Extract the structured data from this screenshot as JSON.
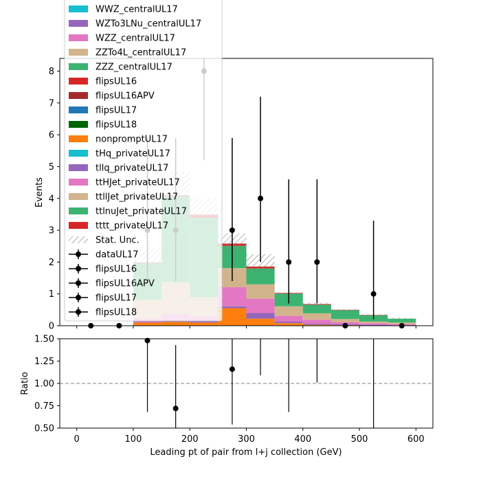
{
  "chart_data": {
    "type": "bar",
    "subtype": "stacked-histogram-with-ratio",
    "bin_edges": [
      0,
      50,
      100,
      150,
      200,
      250,
      300,
      350,
      400,
      450,
      500,
      550,
      600
    ],
    "main_panel": {
      "ylabel": "Events",
      "ylim": [
        0,
        8.4
      ],
      "yticks": [
        "0",
        "1",
        "2",
        "3",
        "4",
        "5",
        "6",
        "7",
        "8"
      ],
      "xlim": [
        -30,
        630
      ],
      "stacked_series": [
        {
          "name": "nonpromptUL17",
          "color": "#ff7f0e",
          "values": [
            0,
            0,
            0.1,
            0.12,
            0.1,
            0.55,
            0.22,
            0.08,
            0.03,
            0.02,
            0.01,
            0.0
          ]
        },
        {
          "name": "tllq_privateUL17",
          "color": "#9467bd",
          "values": [
            0,
            0,
            0.02,
            0.05,
            0.04,
            0.06,
            0.18,
            0.05,
            0.04,
            0.03,
            0.02,
            0.02
          ]
        },
        {
          "name": "ttHJet_privateUL17",
          "color": "#e377c2",
          "values": [
            0,
            0,
            0.1,
            0.2,
            0.15,
            0.6,
            0.45,
            0.18,
            0.12,
            0.06,
            0.05,
            0.03
          ]
        },
        {
          "name": "ttllJet_privateUL17",
          "color": "#d2b48c",
          "values": [
            0,
            0,
            0.6,
            1.0,
            0.6,
            0.6,
            0.45,
            0.3,
            0.2,
            0.1,
            0.05,
            0.05
          ]
        },
        {
          "name": "ttlnuJet_privateUL17",
          "color": "#3cb371",
          "values": [
            0,
            0,
            1.15,
            2.7,
            2.5,
            0.7,
            0.5,
            0.4,
            0.27,
            0.28,
            0.2,
            0.12
          ]
        },
        {
          "name": "tttt_privateUL17",
          "color": "#d62728",
          "values": [
            0,
            0,
            0.02,
            0.03,
            0.1,
            0.07,
            0.06,
            0.02,
            0.02,
            0.01,
            0.01,
            0.0
          ]
        }
      ],
      "stat_unc_top": [
        0,
        0,
        2.45,
        4.85,
        4.0,
        2.9,
        2.25,
        1.05,
        0.72,
        0.52,
        0.36,
        0.25
      ],
      "stat_unc_bottom": [
        0,
        0,
        1.55,
        3.4,
        3.0,
        2.35,
        1.7,
        0.98,
        0.63,
        0.46,
        0.3,
        0.2
      ],
      "data": {
        "name": "dataUL17",
        "x": [
          25,
          75,
          125,
          175,
          225,
          275,
          325,
          375,
          425,
          475,
          525,
          575
        ],
        "y": [
          0,
          0,
          3,
          3,
          8,
          3,
          4,
          2,
          2,
          0,
          1,
          0
        ],
        "err_up": [
          0,
          0,
          2.9,
          2.9,
          3.9,
          2.9,
          3.2,
          2.6,
          2.6,
          0,
          2.3,
          0
        ],
        "err_down": [
          0,
          0,
          1.6,
          1.6,
          2.8,
          1.6,
          2.0,
          1.3,
          1.3,
          0,
          0.8,
          0
        ]
      }
    },
    "ratio_panel": {
      "ylabel": "Ratio",
      "ylim": [
        0.5,
        1.5
      ],
      "yticks": [
        "0.50",
        "0.75",
        "1.00",
        "1.25",
        "1.50"
      ],
      "reference_line": 1.0,
      "points": [
        {
          "x": 125,
          "y": 1.48,
          "lo": 0.68,
          "hi": 1.5
        },
        {
          "x": 175,
          "y": 0.72,
          "lo": 0.5,
          "hi": 1.43
        },
        {
          "x": 275,
          "y": 1.16,
          "lo": 0.54,
          "hi": 1.5
        },
        {
          "x": 325,
          "y": null,
          "lo": 1.09,
          "hi": 1.5
        },
        {
          "x": 375,
          "y": null,
          "lo": 0.68,
          "hi": 1.5
        },
        {
          "x": 425,
          "y": null,
          "lo": 1.01,
          "hi": 1.5
        },
        {
          "x": 525,
          "y": null,
          "lo": 0.5,
          "hi": 1.5
        }
      ]
    },
    "xlabel": "Leading pt of pair from l+j collection (GeV)",
    "xticks": [
      "0",
      "100",
      "200",
      "300",
      "400",
      "500",
      "600"
    ],
    "legend": {
      "placement": "upper-left",
      "entries": [
        {
          "label": "WWZ_centralUL17",
          "kind": "patch",
          "color": "#17becf"
        },
        {
          "label": "WZTo3LNu_centralUL17",
          "kind": "patch",
          "color": "#9467bd"
        },
        {
          "label": "WZZ_centralUL17",
          "kind": "patch",
          "color": "#e377c2"
        },
        {
          "label": "ZZTo4L_centralUL17",
          "kind": "patch",
          "color": "#d2b48c"
        },
        {
          "label": "ZZZ_centralUL17",
          "kind": "patch",
          "color": "#3cb371"
        },
        {
          "label": "flipsUL16",
          "kind": "patch",
          "color": "#d62728"
        },
        {
          "label": "flipsUL16APV",
          "kind": "patch",
          "color": "#a52a2a"
        },
        {
          "label": "flipsUL17",
          "kind": "patch",
          "color": "#1f77b4"
        },
        {
          "label": "flipsUL18",
          "kind": "patch",
          "color": "#006400"
        },
        {
          "label": "nonpromptUL17",
          "kind": "patch",
          "color": "#ff7f0e"
        },
        {
          "label": "tHq_privateUL17",
          "kind": "patch",
          "color": "#17becf"
        },
        {
          "label": "tllq_privateUL17",
          "kind": "patch",
          "color": "#9467bd"
        },
        {
          "label": "ttHJet_privateUL17",
          "kind": "patch",
          "color": "#e377c2"
        },
        {
          "label": "ttllJet_privateUL17",
          "kind": "patch",
          "color": "#d2b48c"
        },
        {
          "label": "ttlnuJet_privateUL17",
          "kind": "patch",
          "color": "#3cb371"
        },
        {
          "label": "tttt_privateUL17",
          "kind": "patch",
          "color": "#d62728"
        },
        {
          "label": "Stat. Unc.",
          "kind": "hatch",
          "color": "#888888"
        },
        {
          "label": "dataUL17",
          "kind": "marker",
          "color": "#000000"
        },
        {
          "label": "flipsUL16",
          "kind": "marker",
          "color": "#000000"
        },
        {
          "label": "flipsUL16APV",
          "kind": "marker",
          "color": "#000000"
        },
        {
          "label": "flipsUL17",
          "kind": "marker",
          "color": "#000000"
        },
        {
          "label": "flipsUL18",
          "kind": "marker",
          "color": "#000000"
        }
      ]
    }
  }
}
